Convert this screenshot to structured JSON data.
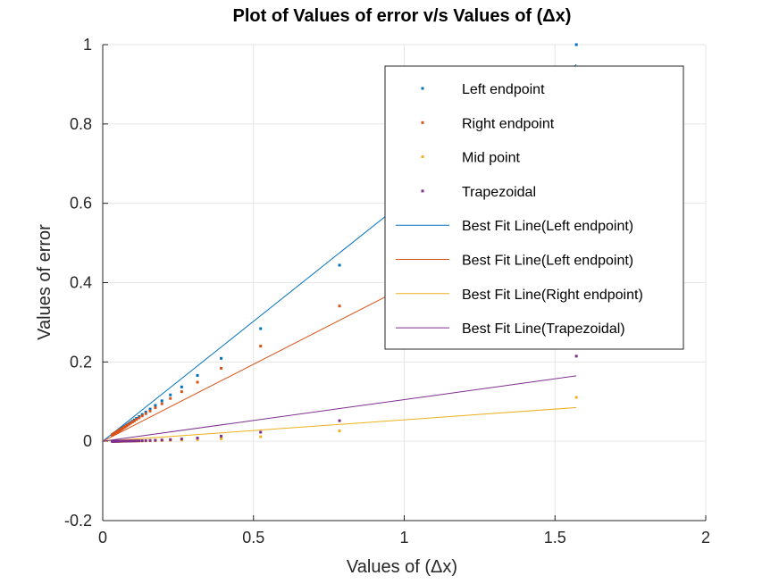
{
  "colors": {
    "background": "#ffffff",
    "axis": "#262626",
    "grid": "#e6e6e6",
    "legend_border": "#262626"
  },
  "chart_data": {
    "type": "scatter",
    "title": "Plot of Values of error v/s Values of (Δx)",
    "xlabel": "Values of (Δx)",
    "ylabel": "Values of error",
    "xlim": [
      0,
      2
    ],
    "ylim": [
      -0.2,
      1
    ],
    "xticks": [
      0,
      0.5,
      1,
      1.5,
      2
    ],
    "xtick_labels": [
      "0",
      "0.5",
      "1",
      "1.5",
      "2"
    ],
    "yticks": [
      -0.2,
      0,
      0.2,
      0.4,
      0.6,
      0.8,
      1
    ],
    "ytick_labels": [
      "-0.2",
      "0",
      "0.2",
      "0.4",
      "0.6",
      "0.8",
      "1"
    ],
    "grid": true,
    "legend_position": "top-right",
    "x": [
      1.5708,
      0.7854,
      0.5236,
      0.3927,
      0.3142,
      0.2618,
      0.2244,
      0.1963,
      0.1745,
      0.1571,
      0.1428,
      0.1309,
      0.1208,
      0.1122,
      0.1047,
      0.0982,
      0.0924,
      0.0873,
      0.0827,
      0.0785,
      0.0748,
      0.0714,
      0.0683,
      0.0654,
      0.0628,
      0.0604,
      0.0582,
      0.0561,
      0.0542,
      0.0524,
      0.0507,
      0.0491,
      0.0476,
      0.0462,
      0.0449,
      0.0436,
      0.0425,
      0.0413,
      0.0403,
      0.0393,
      0.0383,
      0.0374,
      0.0365,
      0.0357,
      0.0349,
      0.0341,
      0.0334,
      0.0327,
      0.0321,
      0.0314
    ],
    "series": [
      {
        "name": "Left endpoint",
        "kind": "points",
        "color": "#0072bd",
        "values": [
          1.0,
          0.444,
          0.284,
          0.209,
          0.166,
          0.137,
          0.117,
          0.102,
          0.0905,
          0.0813,
          0.0738,
          0.0676,
          0.0623,
          0.0578,
          0.0539,
          0.0506,
          0.0476,
          0.0449,
          0.0425,
          0.0404,
          0.0384,
          0.0366,
          0.035,
          0.0336,
          0.0322,
          0.0309,
          0.0298,
          0.0287,
          0.0277,
          0.0268,
          0.0259,
          0.0251,
          0.0243,
          0.0236,
          0.0229,
          0.0223,
          0.0217,
          0.0211,
          0.0206,
          0.02,
          0.0195,
          0.0191,
          0.0186,
          0.0182,
          0.0178,
          0.0174,
          0.017,
          0.0167,
          0.0164,
          0.016
        ]
      },
      {
        "name": "Right endpoint",
        "kind": "points",
        "color": "#d95319",
        "values": [
          0.571,
          0.341,
          0.24,
          0.184,
          0.149,
          0.125,
          0.108,
          0.0946,
          0.0845,
          0.0763,
          0.0696,
          0.064,
          0.0592,
          0.0551,
          0.0515,
          0.0484,
          0.0456,
          0.0431,
          0.0409,
          0.0389,
          0.0371,
          0.0354,
          0.0339,
          0.0325,
          0.0312,
          0.03,
          0.0289,
          0.0279,
          0.0269,
          0.026,
          0.0252,
          0.0244,
          0.0237,
          0.023,
          0.0224,
          0.0217,
          0.0212,
          0.0206,
          0.0201,
          0.0196,
          0.0191,
          0.0186,
          0.0182,
          0.0178,
          0.0174,
          0.017,
          0.0167,
          0.0163,
          0.016,
          0.0157
        ]
      },
      {
        "name": "Mid point",
        "kind": "points",
        "color": "#edb120",
        "values": [
          0.1107,
          0.0262,
          0.0115,
          0.0064,
          0.0041,
          0.00286,
          0.0021,
          0.00161,
          0.00127,
          0.00103,
          0.00085,
          0.00071,
          0.00061,
          0.00052,
          0.00046,
          0.0004,
          0.00036,
          0.00032,
          0.00028,
          0.00026,
          0.00023,
          0.00021,
          0.00019,
          0.00018,
          0.00016,
          0.00015,
          0.00014,
          0.00013,
          0.00012,
          0.00011,
          0.0001,
          0.0001,
          9e-05,
          9e-05,
          8e-05,
          8e-05,
          7e-05,
          7e-05,
          7e-05,
          6e-05,
          6e-05,
          6e-05,
          6e-05,
          5e-05,
          5e-05,
          5e-05,
          5e-05,
          4e-05,
          4e-05,
          4e-05
        ]
      },
      {
        "name": "Trapezoidal",
        "kind": "points",
        "color": "#7e2f8e",
        "values": [
          0.2146,
          0.0519,
          0.0229,
          0.0129,
          0.0082,
          0.00572,
          0.0042,
          0.00321,
          0.00254,
          0.00206,
          0.0017,
          0.00143,
          0.00122,
          0.00105,
          0.00091,
          0.0008,
          0.00071,
          0.00064,
          0.00057,
          0.00051,
          0.00047,
          0.00042,
          0.00039,
          0.00036,
          0.00033,
          0.0003,
          0.00028,
          0.00026,
          0.00024,
          0.00023,
          0.00021,
          0.0002,
          0.00019,
          0.00018,
          0.00017,
          0.00016,
          0.00015,
          0.00014,
          0.00014,
          0.00013,
          0.00012,
          0.00012,
          0.00011,
          0.00011,
          0.0001,
          0.0001,
          9e-05,
          9e-05,
          9e-05,
          8e-05
        ]
      },
      {
        "name": "Best Fit Line(Left endpoint)",
        "kind": "line",
        "color": "#0072bd",
        "x": [
          0,
          1.5708
        ],
        "values": [
          0,
          0.95
        ]
      },
      {
        "name": "Best Fit Line(Left endpoint)",
        "kind": "line",
        "color": "#d95319",
        "x": [
          0,
          1.5708
        ],
        "values": [
          0,
          0.61
        ]
      },
      {
        "name": "Best Fit Line(Right endpoint)",
        "kind": "line",
        "color": "#edb120",
        "x": [
          0,
          1.5708
        ],
        "values": [
          0,
          0.085
        ]
      },
      {
        "name": "Best Fit Line(Trapezoidal)",
        "kind": "line",
        "color": "#7e2f8e",
        "x": [
          0,
          1.5708
        ],
        "values": [
          0,
          0.165
        ]
      }
    ]
  }
}
